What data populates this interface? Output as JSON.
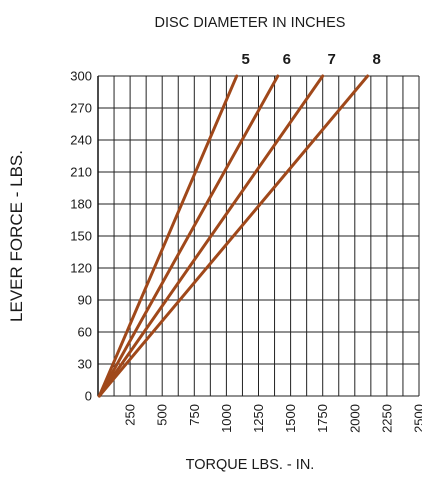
{
  "chart_data": {
    "type": "line",
    "title": "DISC DIAMETER IN INCHES",
    "xlabel": "TORQUE LBS. - IN.",
    "ylabel": "LEVER FORCE - LBS.",
    "xlim": [
      0,
      2500
    ],
    "ylim": [
      0,
      300
    ],
    "x_ticks": [
      "250",
      "500",
      "750",
      "1000",
      "1250",
      "1500",
      "1750",
      "2000",
      "2250",
      "2500"
    ],
    "y_ticks": [
      "0",
      "30",
      "60",
      "90",
      "120",
      "150",
      "180",
      "210",
      "240",
      "270",
      "300"
    ],
    "grid": true,
    "line_color": "#a0481a",
    "series": [
      {
        "name": "5",
        "points": [
          [
            10,
            0
          ],
          [
            1080,
            300
          ]
        ]
      },
      {
        "name": "6",
        "points": [
          [
            10,
            0
          ],
          [
            1400,
            300
          ]
        ]
      },
      {
        "name": "7",
        "points": [
          [
            10,
            0
          ],
          [
            1750,
            300
          ]
        ]
      },
      {
        "name": "8",
        "points": [
          [
            10,
            0
          ],
          [
            2100,
            300
          ]
        ]
      }
    ]
  }
}
